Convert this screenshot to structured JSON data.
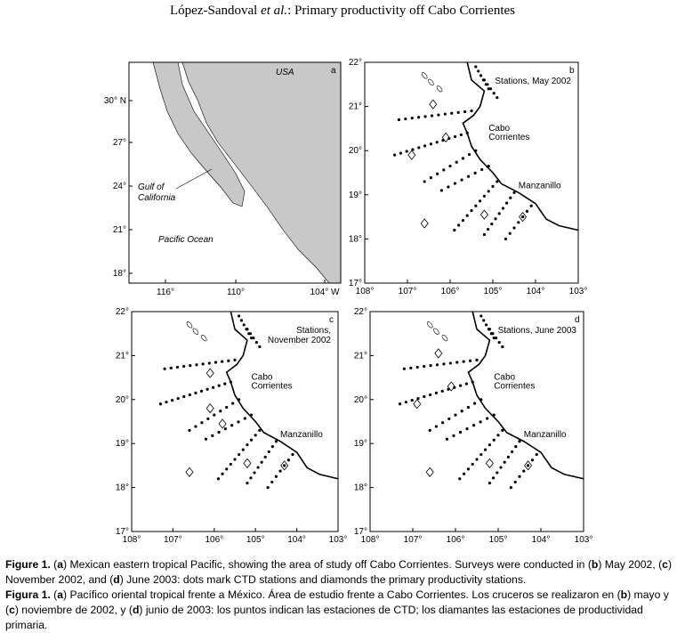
{
  "header": {
    "authors": "López-Sandoval ",
    "etal": "et al.",
    "title": ": Primary productivity off Cabo Corrientes"
  },
  "panels": [
    {
      "letter": "a",
      "labels": [
        "USA",
        "Gulf of",
        "California",
        "Pacific Ocean"
      ],
      "y_ticks": [
        "30° N",
        "27°",
        "24°",
        "21°",
        "18°"
      ],
      "x_ticks": [
        "116°",
        "110°",
        "104° W"
      ]
    },
    {
      "letter": "b",
      "labels": [
        "Stations, May 2002",
        "Cabo",
        "Corrientes",
        "Manzanillo"
      ],
      "y_ticks": [
        "22°",
        "21°",
        "20°",
        "19°",
        "18°",
        "17°"
      ],
      "x_ticks": [
        "108°",
        "107°",
        "106°",
        "105°",
        "104°",
        "103°"
      ]
    },
    {
      "letter": "c",
      "labels": [
        "Stations,",
        "November 2002",
        "Cabo",
        "Corrientes",
        "Manzanillo"
      ],
      "y_ticks": [
        "22°",
        "21°",
        "20°",
        "19°",
        "18°",
        "17°"
      ],
      "x_ticks": [
        "108°",
        "107°",
        "106°",
        "105°",
        "104°",
        "103°"
      ]
    },
    {
      "letter": "d",
      "labels": [
        "Stations, June 2003",
        "Cabo",
        "Corrientes",
        "Manzanillo"
      ],
      "y_ticks": [
        "22°",
        "21°",
        "20°",
        "19°",
        "18°",
        "17°"
      ],
      "x_ticks": [
        "108°",
        "107°",
        "106°",
        "105°",
        "104°",
        "103°"
      ]
    }
  ],
  "captions": [
    [
      {
        "text": "Figure 1.",
        "bold": true
      },
      {
        "text": " ("
      },
      {
        "text": "a",
        "bold": true
      },
      {
        "text": ") Mexican eastern tropical Pacific, showing the area of study off Cabo Corrientes. Surveys were conducted in ("
      },
      {
        "text": "b",
        "bold": true
      },
      {
        "text": ") May 2002, ("
      },
      {
        "text": "c",
        "bold": true
      },
      {
        "text": ") November 2002, and ("
      },
      {
        "text": "d",
        "bold": true
      },
      {
        "text": ") June 2003: dots mark CTD stations and diamonds the primary productivity stations."
      }
    ],
    [
      {
        "text": "Figura 1.",
        "bold": true
      },
      {
        "text": " ("
      },
      {
        "text": "a",
        "bold": true
      },
      {
        "text": ") Pacífico oriental tropical frente a México. Área de estudio frente a Cabo Corrientes. Los cruceros se realizaron en ("
      },
      {
        "text": "b",
        "bold": true
      },
      {
        "text": ") mayo y ("
      },
      {
        "text": "c",
        "bold": true
      },
      {
        "text": ") noviembre de 2002, y ("
      },
      {
        "text": "d",
        "bold": true
      },
      {
        "text": ") junio de 2003: los puntos indican las estaciones de CTD; los diamantes las estaciones de productividad primaria."
      }
    ]
  ]
}
